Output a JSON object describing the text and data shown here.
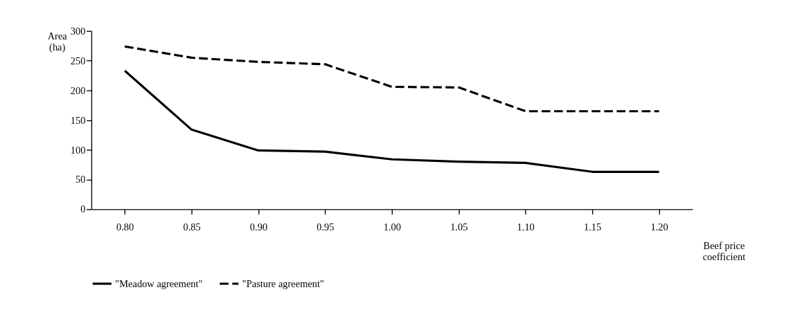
{
  "chart_data": {
    "type": "line",
    "xlabel": "Beef price coefficient",
    "ylabel": "Area (ha)",
    "categories": [
      "0.80",
      "0.85",
      "0.90",
      "0.95",
      "1.00",
      "1.05",
      "1.10",
      "1.15",
      "1.20"
    ],
    "series": [
      {
        "name": "\"Meadow agreement\"",
        "color": "#000000",
        "line_style": "solid",
        "values": [
          233,
          134,
          99,
          97,
          84,
          80,
          78,
          63,
          63
        ]
      },
      {
        "name": "\"Pasture agreement\"",
        "color": "#000000",
        "line_style": "dashed",
        "values": [
          274,
          255,
          248,
          244,
          206,
          205,
          165,
          165,
          165
        ]
      }
    ],
    "ylim": [
      0,
      300
    ],
    "yticks": [
      0,
      50,
      100,
      150,
      200,
      250,
      300
    ],
    "grid": false,
    "legend": "bottom",
    "marker": "none"
  }
}
